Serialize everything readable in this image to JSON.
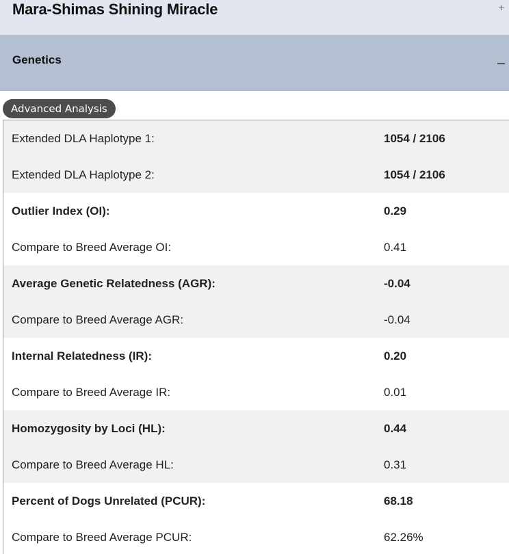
{
  "top_accordion": {
    "title": "Mara-Shimas Shining Miracle",
    "toggle_symbol": "+"
  },
  "genetics": {
    "title": "Genetics"
  },
  "badge": {
    "label": "Advanced Analysis"
  },
  "rows": [
    {
      "label": "Extended DLA Haplotype 1:",
      "value": "1054 / 2106",
      "bold_label": false,
      "bold_value": true,
      "shaded": true
    },
    {
      "label": "Extended DLA Haplotype 2:",
      "value": "1054 / 2106",
      "bold_label": false,
      "bold_value": true,
      "shaded": true
    },
    {
      "label": "Outlier Index (OI):",
      "value": "0.29",
      "bold_label": true,
      "bold_value": true,
      "shaded": false
    },
    {
      "label": "Compare to Breed Average OI:",
      "value": "0.41",
      "bold_label": false,
      "bold_value": false,
      "shaded": false
    },
    {
      "label": "Average Genetic Relatedness (AGR):",
      "value": "-0.04",
      "bold_label": true,
      "bold_value": true,
      "shaded": true
    },
    {
      "label": "Compare to Breed Average AGR:",
      "value": "-0.04",
      "bold_label": false,
      "bold_value": false,
      "shaded": true
    },
    {
      "label": "Internal Relatedness (IR):",
      "value": "0.20",
      "bold_label": true,
      "bold_value": true,
      "shaded": false
    },
    {
      "label": "Compare to Breed Average IR:",
      "value": "0.01",
      "bold_label": false,
      "bold_value": false,
      "shaded": false
    },
    {
      "label": "Homozygosity by Loci (HL):",
      "value": "0.44",
      "bold_label": true,
      "bold_value": true,
      "shaded": true
    },
    {
      "label": "Compare to Breed Average HL:",
      "value": "0.31",
      "bold_label": false,
      "bold_value": false,
      "shaded": true
    },
    {
      "label": "Percent of Dogs Unrelated (PCUR):",
      "value": "68.18",
      "bold_label": true,
      "bold_value": true,
      "shaded": false
    },
    {
      "label": "Compare to Breed Average PCUR:",
      "value": "62.26%",
      "bold_label": false,
      "bold_value": false,
      "shaded": false
    }
  ]
}
